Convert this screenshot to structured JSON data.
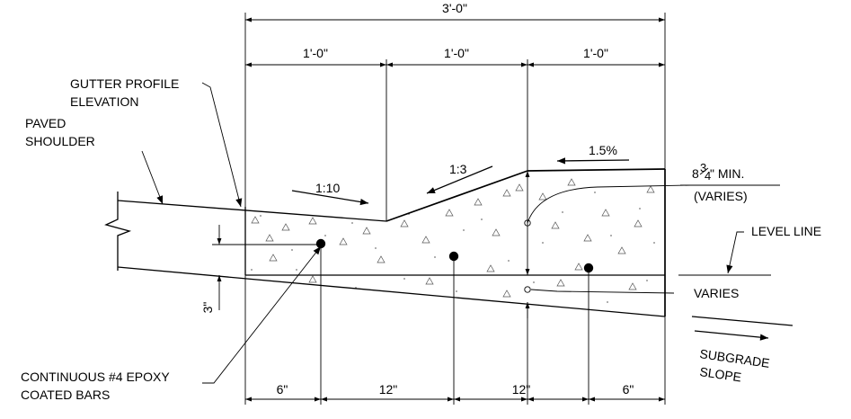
{
  "dimensions": {
    "overall": "3'-0\"",
    "top_segments": [
      "1'-0\"",
      "1'-0\"",
      "1'-0\""
    ],
    "bottom_segments": [
      "6\"",
      "12\"",
      "12\"",
      "6\""
    ],
    "left_offset": "3\""
  },
  "slopes": {
    "gutter_slope": "1:10",
    "back_slope": "1:3",
    "top_slope": "1.5%"
  },
  "labels": {
    "gutter_profile_line1": "GUTTER PROFILE",
    "gutter_profile_line2": "ELEVATION",
    "paved_shoulder_line1": "PAVED",
    "paved_shoulder_line2": "SHOULDER",
    "min_thickness_whole": "8",
    "min_thickness_num": "3",
    "min_thickness_den": "4",
    "min_thickness_suffix": "\" MIN.",
    "varies_paren": "(VARIES)",
    "level_line": "LEVEL LINE",
    "varies": "VARIES",
    "subgrade_line1": "SUBGRADE",
    "subgrade_line2": "SLOPE",
    "bars_line1": "CONTINUOUS #4 EPOXY",
    "bars_line2": "COATED BARS"
  }
}
